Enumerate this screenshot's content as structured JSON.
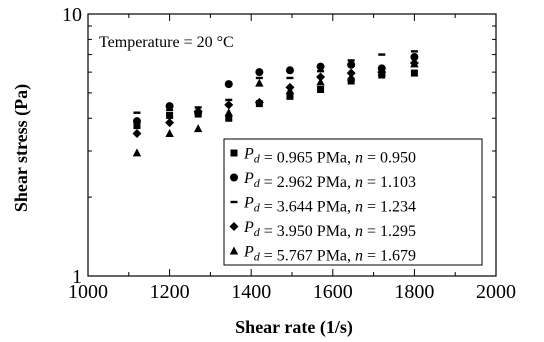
{
  "chart_data": {
    "type": "scatter",
    "title": "",
    "xlabel": "Shear rate (1/s)",
    "ylabel": "Shear stress (Pa)",
    "xlim": [
      1000,
      2000
    ],
    "ylim": [
      1,
      10
    ],
    "y_scale": "log",
    "x_ticks": [
      "1000",
      "1200",
      "1400",
      "1600",
      "1800",
      "2000"
    ],
    "y_ticks": [
      "1",
      "10"
    ],
    "annotation": "Temperature = 20 °C",
    "legend_position": "bottom-right",
    "grid": false,
    "series": [
      {
        "name": "P_d = 0.965 PMa, n = 0.950",
        "legend": {
          "v1": "P",
          "v1sub": "d",
          "t1": " = 0.965 PMa, ",
          "v2": "n",
          "t2": " = 0.950"
        },
        "marker": "square",
        "x": [
          1120,
          1200,
          1270,
          1345,
          1420,
          1495,
          1570,
          1645,
          1720,
          1800
        ],
        "y": [
          3.75,
          4.1,
          4.15,
          4.0,
          4.55,
          4.85,
          5.15,
          5.55,
          5.85,
          5.95
        ]
      },
      {
        "name": "P_d = 2.962 PMa, n = 1.103",
        "legend": {
          "v1": "P",
          "v1sub": "d",
          "t1": " = 2.962 PMa, ",
          "v2": "n",
          "t2": " = 1.103"
        },
        "marker": "circle",
        "x": [
          1120,
          1200,
          1270,
          1345,
          1420,
          1495,
          1570,
          1645,
          1720,
          1800
        ],
        "y": [
          3.9,
          4.45,
          4.2,
          5.4,
          6.0,
          6.1,
          6.3,
          6.4,
          6.2,
          6.85
        ]
      },
      {
        "name": "P_d = 3.644 PMa, n = 1.234",
        "legend": {
          "v1": "P",
          "v1sub": "d",
          "t1": " = 3.644 PMa, ",
          "v2": "n",
          "t2": " = 1.234"
        },
        "marker": "dash",
        "x": [
          1120,
          1200,
          1270,
          1345,
          1420,
          1495,
          1570,
          1645,
          1720,
          1800
        ],
        "y": [
          4.2,
          4.3,
          4.4,
          4.7,
          5.7,
          5.7,
          6.05,
          6.65,
          7.0,
          7.2
        ]
      },
      {
        "name": "P_d = 3.950 PMa, n = 1.295",
        "legend": {
          "v1": "P",
          "v1sub": "d",
          "t1": " = 3.950 PMa, ",
          "v2": "n",
          "t2": " = 1.295"
        },
        "marker": "diamond",
        "x": [
          1120,
          1200,
          1270,
          1345,
          1420,
          1495,
          1570,
          1645,
          1720,
          1800
        ],
        "y": [
          3.5,
          3.85,
          4.25,
          4.5,
          4.6,
          5.25,
          5.75,
          5.95,
          6.0,
          6.5
        ]
      },
      {
        "name": "P_d = 5.767 PMa, n = 1.679",
        "legend": {
          "v1": "P",
          "v1sub": "d",
          "t1": " = 5.767 PMa, ",
          "v2": "n",
          "t2": " = 1.679"
        },
        "marker": "triangle",
        "x": [
          1120,
          1200,
          1270,
          1345,
          1420,
          1495,
          1570,
          1645,
          1720,
          1800
        ],
        "y": [
          2.95,
          3.5,
          3.65,
          4.2,
          5.45,
          5.1,
          5.5,
          5.75,
          6.0,
          6.45
        ]
      }
    ]
  }
}
